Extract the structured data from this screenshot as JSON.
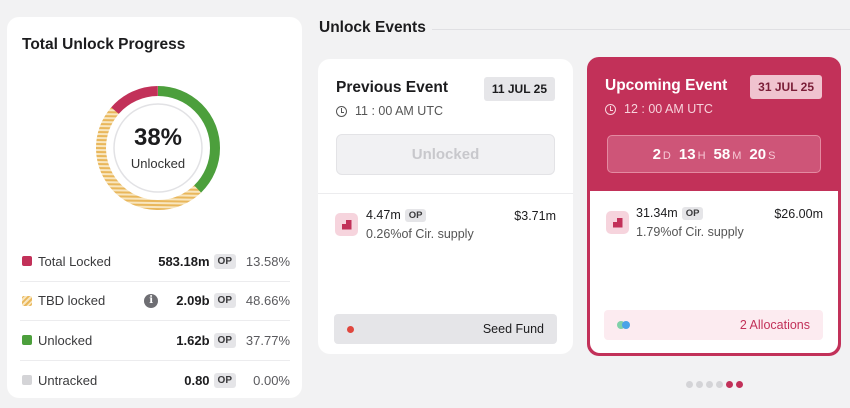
{
  "progress": {
    "title": "Total Unlock Progress",
    "percent": "38%",
    "percent_label": "Unlocked",
    "legend": [
      {
        "label": "Total Locked",
        "amount": "583.18m",
        "token": "OP",
        "pct": "13.58%"
      },
      {
        "label": "TBD locked",
        "amount": "2.09b",
        "token": "OP",
        "pct": "48.66%",
        "info_icon": "info-icon"
      },
      {
        "label": "Unlocked",
        "amount": "1.62b",
        "token": "OP",
        "pct": "37.77%"
      },
      {
        "label": "Untracked",
        "amount": "0.80",
        "token": "OP",
        "pct": "0.00%"
      }
    ],
    "colors": {
      "locked": "#c23159",
      "tbd": "#e9b75b",
      "unlocked": "#4c9f3c",
      "untracked": "#d4d4d7"
    }
  },
  "events": {
    "title": "Unlock Events",
    "previous": {
      "title": "Previous Event",
      "date": "11 JUL 25",
      "time": "11 : 00 AM UTC",
      "button": "Unlocked",
      "amount": "4.47m",
      "token": "OP",
      "supply": "0.26%of Cir. supply",
      "usd": "$3.71m",
      "allocation": "Seed Fund"
    },
    "upcoming": {
      "title": "Upcoming Event",
      "date": "31 JUL 25",
      "time": "12 : 00 AM UTC",
      "countdown": {
        "days": "2",
        "d": "D",
        "hours": "13",
        "h": "H",
        "minutes": "58",
        "m": "M",
        "seconds": "20",
        "s": "S"
      },
      "amount": "31.34m",
      "token": "OP",
      "supply": "1.79%of Cir. supply",
      "usd": "$26.00m",
      "allocation": "2 Allocations"
    },
    "accent": "#c23159"
  },
  "pager": {
    "total": 6,
    "active": [
      4,
      5
    ]
  }
}
